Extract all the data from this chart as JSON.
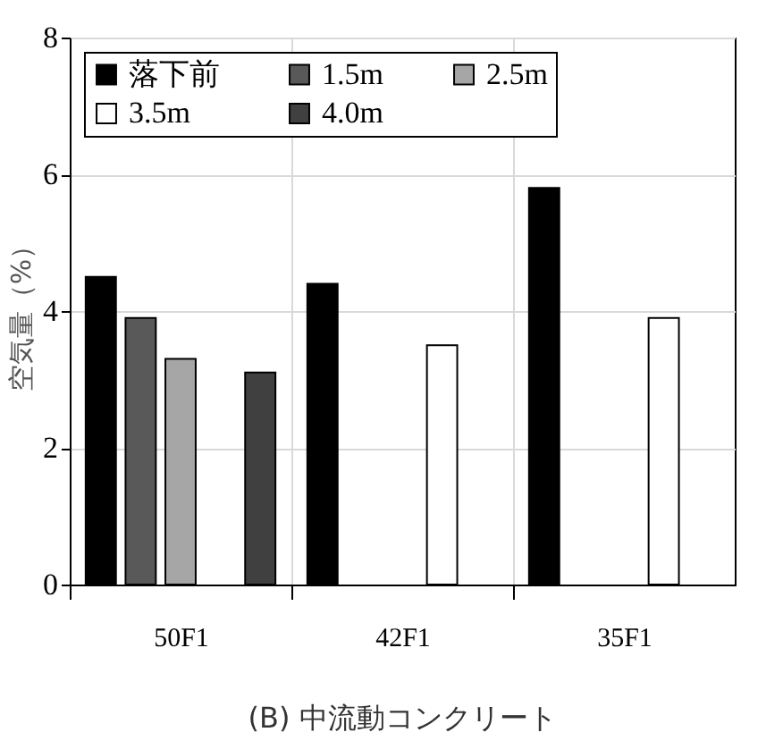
{
  "chart_data": {
    "type": "bar",
    "title": "(B) 中流動コンクリート",
    "ylabel": "空気量（%）",
    "categories": [
      "50F1",
      "42F1",
      "35F1"
    ],
    "series": [
      {
        "name": "落下前",
        "color": "#000000",
        "values": [
          4.5,
          4.4,
          5.8
        ]
      },
      {
        "name": "1.5m",
        "color": "#595959",
        "values": [
          3.9,
          null,
          null
        ]
      },
      {
        "name": "2.5m",
        "color": "#a6a6a6",
        "values": [
          3.3,
          null,
          null
        ]
      },
      {
        "name": "3.5m",
        "color": "#ffffff",
        "values": [
          null,
          3.5,
          3.9
        ]
      },
      {
        "name": "4.0m",
        "color": "#404040",
        "values": [
          3.1,
          null,
          null
        ]
      }
    ],
    "ylim": [
      0,
      8
    ],
    "yticks": [
      0,
      2,
      4,
      6,
      8
    ],
    "grid": true,
    "legend": "top"
  }
}
